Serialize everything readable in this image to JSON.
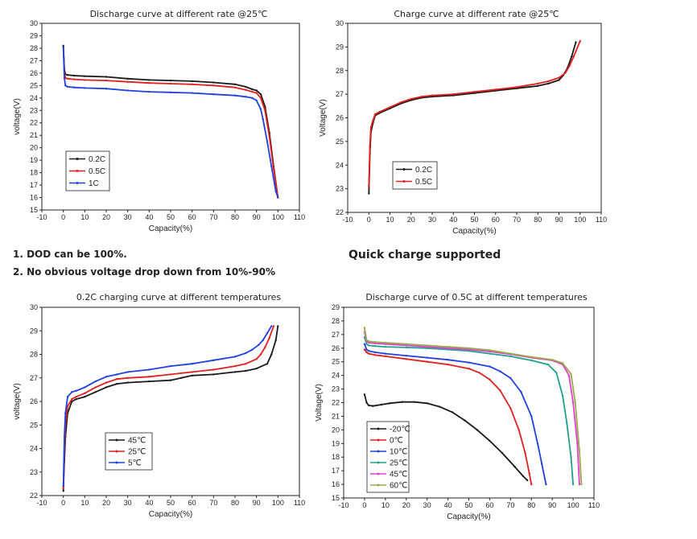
{
  "notes": {
    "dod": "1. DOD can be 100%.",
    "no_drop": "2. No obvious voltage drop down from 10%-90%",
    "quick_charge": "Quick charge supported"
  },
  "chart_data": [
    {
      "id": "discharge_rate",
      "type": "line",
      "title": "Discharge curve at different rate @25℃",
      "xlabel": "Capacity(%)",
      "ylabel": "voltage(V)",
      "xlim": [
        -10,
        110
      ],
      "ylim": [
        15,
        30
      ],
      "xticks": [
        -10,
        0,
        10,
        20,
        30,
        40,
        50,
        60,
        70,
        80,
        90,
        100,
        110
      ],
      "yticks": [
        15,
        16,
        17,
        18,
        19,
        20,
        21,
        22,
        23,
        24,
        25,
        26,
        27,
        28,
        29,
        30
      ],
      "legend_position": "bottom-left",
      "series": [
        {
          "name": "0.2C",
          "color": "#1a1a1a",
          "x": [
            0,
            0.5,
            1,
            2,
            5,
            10,
            20,
            30,
            40,
            50,
            60,
            70,
            80,
            85,
            88,
            90,
            92,
            94,
            96,
            98,
            100
          ],
          "y": [
            28.2,
            26.3,
            25.9,
            25.85,
            25.8,
            25.75,
            25.7,
            25.55,
            25.45,
            25.4,
            25.35,
            25.25,
            25.1,
            24.9,
            24.7,
            24.6,
            24.3,
            23.3,
            21.2,
            18.5,
            16
          ]
        },
        {
          "name": "0.5C",
          "color": "#e02020",
          "x": [
            0,
            0.5,
            1,
            2,
            5,
            10,
            20,
            30,
            40,
            50,
            60,
            70,
            80,
            85,
            88,
            90,
            92,
            94,
            96,
            98,
            100
          ],
          "y": [
            28.1,
            26.0,
            25.6,
            25.55,
            25.5,
            25.45,
            25.4,
            25.3,
            25.2,
            25.15,
            25.1,
            25.0,
            24.85,
            24.65,
            24.5,
            24.4,
            24.0,
            23.0,
            20.9,
            18.3,
            16
          ]
        },
        {
          "name": "1C",
          "color": "#2040e0",
          "x": [
            0,
            0.5,
            1,
            2,
            5,
            10,
            20,
            30,
            40,
            50,
            60,
            70,
            80,
            85,
            88,
            90,
            92,
            93,
            95,
            97,
            99,
            100
          ],
          "y": [
            28.1,
            25.6,
            25.0,
            24.9,
            24.85,
            24.8,
            24.75,
            24.6,
            24.5,
            24.45,
            24.4,
            24.3,
            24.2,
            24.1,
            24.0,
            23.8,
            23.1,
            22.3,
            20.5,
            18.5,
            16.5,
            16
          ]
        }
      ]
    },
    {
      "id": "charge_rate",
      "type": "line",
      "title": "Charge curve at different rate @25℃",
      "xlabel": "Capacity(%)",
      "ylabel": "Voltage(V)",
      "xlim": [
        -10,
        110
      ],
      "ylim": [
        22,
        30
      ],
      "xticks": [
        -10,
        0,
        10,
        20,
        30,
        40,
        50,
        60,
        70,
        80,
        90,
        100,
        110
      ],
      "yticks": [
        22,
        23,
        24,
        25,
        26,
        27,
        28,
        29,
        30
      ],
      "legend_position": "bottom-left",
      "series": [
        {
          "name": "0.2C",
          "color": "#1a1a1a",
          "x": [
            0,
            0.5,
            1,
            2,
            3,
            5,
            10,
            15,
            20,
            25,
            30,
            40,
            50,
            60,
            70,
            80,
            85,
            90,
            92,
            94,
            96,
            98
          ],
          "y": [
            22.8,
            24.5,
            25.4,
            25.8,
            26.1,
            26.2,
            26.4,
            26.6,
            26.75,
            26.85,
            26.9,
            26.95,
            27.05,
            27.15,
            27.25,
            27.35,
            27.45,
            27.6,
            27.8,
            28.1,
            28.6,
            29.2
          ]
        },
        {
          "name": "0.5C",
          "color": "#e02020",
          "x": [
            0,
            0.5,
            1,
            2,
            3,
            5,
            10,
            15,
            20,
            25,
            30,
            40,
            50,
            60,
            70,
            80,
            85,
            90,
            93,
            95,
            97,
            100
          ],
          "y": [
            23.1,
            24.8,
            25.6,
            25.9,
            26.15,
            26.25,
            26.45,
            26.65,
            26.8,
            26.9,
            26.95,
            27.0,
            27.1,
            27.2,
            27.3,
            27.45,
            27.55,
            27.7,
            27.9,
            28.2,
            28.6,
            29.25
          ]
        }
      ]
    },
    {
      "id": "charge_temp",
      "type": "line",
      "title": "0.2C charging curve at different temperatures",
      "xlabel": "Capacity(%)",
      "ylabel": "voltage(V)",
      "xlim": [
        -10,
        110
      ],
      "ylim": [
        22,
        30
      ],
      "xticks": [
        -10,
        0,
        10,
        20,
        30,
        40,
        50,
        60,
        70,
        80,
        90,
        100,
        110
      ],
      "yticks": [
        22,
        23,
        24,
        25,
        26,
        27,
        28,
        29,
        30
      ],
      "legend_position": "bottom-center",
      "series": [
        {
          "name": "45℃",
          "color": "#1a1a1a",
          "x": [
            0,
            0.5,
            1,
            2,
            4,
            6,
            10,
            15,
            20,
            25,
            30,
            40,
            50,
            55,
            60,
            70,
            80,
            85,
            90,
            95,
            97,
            99,
            100
          ],
          "y": [
            22.2,
            23.5,
            24.5,
            25.5,
            26.0,
            26.1,
            26.2,
            26.4,
            26.6,
            26.75,
            26.8,
            26.85,
            26.9,
            27.0,
            27.1,
            27.15,
            27.25,
            27.3,
            27.4,
            27.6,
            28.0,
            28.6,
            29.2
          ]
        },
        {
          "name": "25℃",
          "color": "#e02020",
          "x": [
            0,
            0.5,
            1,
            2,
            4,
            6,
            10,
            15,
            20,
            25,
            30,
            40,
            50,
            60,
            70,
            80,
            85,
            90,
            92,
            94,
            96,
            98
          ],
          "y": [
            22.3,
            24.0,
            25.0,
            25.8,
            26.1,
            26.2,
            26.35,
            26.6,
            26.8,
            26.95,
            27.0,
            27.05,
            27.15,
            27.25,
            27.35,
            27.5,
            27.6,
            27.8,
            28.0,
            28.3,
            28.7,
            29.2
          ]
        },
        {
          "name": "5℃",
          "color": "#2040e0",
          "x": [
            0,
            0.5,
            1,
            2,
            4,
            6,
            10,
            15,
            20,
            25,
            30,
            40,
            50,
            60,
            70,
            80,
            85,
            88,
            91,
            93,
            95,
            97
          ],
          "y": [
            22.4,
            24.5,
            25.5,
            26.2,
            26.4,
            26.45,
            26.6,
            26.85,
            27.05,
            27.15,
            27.25,
            27.35,
            27.5,
            27.6,
            27.75,
            27.9,
            28.05,
            28.2,
            28.4,
            28.6,
            28.9,
            29.2
          ]
        }
      ]
    },
    {
      "id": "discharge_temp",
      "type": "line",
      "title": "Discharge curve of 0.5C at different temperatures",
      "xlabel": "Capacity(%)",
      "ylabel": "Voltage(V)",
      "xlim": [
        -10,
        110
      ],
      "ylim": [
        15,
        29
      ],
      "xticks": [
        -10,
        0,
        10,
        20,
        30,
        40,
        50,
        60,
        70,
        80,
        90,
        100,
        110
      ],
      "yticks": [
        15,
        16,
        17,
        18,
        19,
        20,
        21,
        22,
        23,
        24,
        25,
        26,
        27,
        28,
        29
      ],
      "legend_position": "bottom-left",
      "series": [
        {
          "name": "-20℃",
          "color": "#1a1a1a",
          "x": [
            0,
            1,
            2,
            4,
            8,
            12,
            18,
            24,
            30,
            36,
            42,
            48,
            54,
            60,
            66,
            72,
            76,
            78
          ],
          "y": [
            22.6,
            22.0,
            21.8,
            21.75,
            21.85,
            21.95,
            22.05,
            22.05,
            21.95,
            21.7,
            21.3,
            20.7,
            20.0,
            19.2,
            18.3,
            17.3,
            16.6,
            16.3
          ]
        },
        {
          "name": "0℃",
          "color": "#e02020",
          "x": [
            0,
            1,
            2,
            5,
            10,
            20,
            30,
            40,
            50,
            55,
            60,
            65,
            70,
            74,
            77,
            79,
            80
          ],
          "y": [
            25.9,
            25.7,
            25.6,
            25.5,
            25.4,
            25.2,
            25.0,
            24.8,
            24.5,
            24.2,
            23.7,
            22.9,
            21.6,
            20.0,
            18.3,
            16.8,
            16.0
          ]
        },
        {
          "name": "10℃",
          "color": "#2040e0",
          "x": [
            0,
            1,
            2,
            5,
            10,
            20,
            30,
            40,
            50,
            60,
            65,
            70,
            75,
            80,
            83,
            85,
            87
          ],
          "y": [
            26.3,
            25.9,
            25.8,
            25.7,
            25.6,
            25.45,
            25.3,
            25.15,
            24.95,
            24.65,
            24.3,
            23.8,
            22.8,
            21.0,
            19.0,
            17.5,
            16.0
          ]
        },
        {
          "name": "25℃",
          "color": "#20a090",
          "x": [
            0,
            1,
            2,
            5,
            10,
            20,
            30,
            40,
            50,
            60,
            70,
            80,
            88,
            92,
            95,
            97,
            99,
            100
          ],
          "y": [
            26.8,
            26.3,
            26.2,
            26.15,
            26.1,
            26.05,
            26.0,
            25.9,
            25.8,
            25.6,
            25.4,
            25.1,
            24.8,
            24.2,
            22.5,
            20.5,
            18.0,
            16.0
          ]
        },
        {
          "name": "45℃",
          "color": "#e040d0",
          "x": [
            0,
            1,
            2,
            5,
            10,
            20,
            30,
            40,
            50,
            60,
            70,
            80,
            90,
            95,
            98,
            100,
            102,
            103
          ],
          "y": [
            27.2,
            26.5,
            26.4,
            26.35,
            26.3,
            26.2,
            26.1,
            26.0,
            25.9,
            25.75,
            25.55,
            25.3,
            25.1,
            24.8,
            24.0,
            22.0,
            19.0,
            16.0
          ]
        },
        {
          "name": "60℃",
          "color": "#9aa84a",
          "x": [
            0,
            1,
            2,
            5,
            10,
            20,
            30,
            40,
            50,
            60,
            70,
            80,
            90,
            95,
            99,
            101,
            103,
            104
          ],
          "y": [
            27.5,
            26.6,
            26.5,
            26.45,
            26.4,
            26.3,
            26.2,
            26.1,
            26.0,
            25.85,
            25.6,
            25.35,
            25.15,
            24.9,
            24.1,
            22.0,
            18.5,
            16.0
          ]
        }
      ]
    }
  ]
}
